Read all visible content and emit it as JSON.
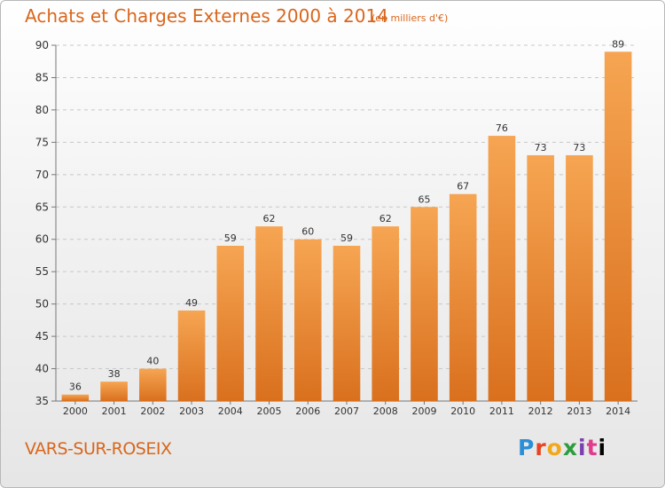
{
  "header": {
    "title": "Achats et Charges Externes 2000 à 2014",
    "subtitle": "(en milliers d'€)"
  },
  "footer": {
    "commune": "VARS-SUR-ROSEIX",
    "logo_text": "Proxiti"
  },
  "colors": {
    "accent": "#d9661c",
    "bar_top": "#f6a552",
    "bar_bottom": "#d9701e"
  },
  "chart_data": {
    "type": "bar",
    "title": "Achats et Charges Externes 2000 à 2014",
    "subtitle": "(en milliers d'€)",
    "categories": [
      "2000",
      "2001",
      "2002",
      "2003",
      "2004",
      "2005",
      "2006",
      "2007",
      "2008",
      "2009",
      "2010",
      "2011",
      "2012",
      "2013",
      "2014"
    ],
    "values": [
      36,
      38,
      40,
      49,
      59,
      62,
      60,
      59,
      62,
      65,
      67,
      76,
      73,
      73,
      89
    ],
    "ylim": [
      35,
      90
    ],
    "yticks": [
      35,
      40,
      45,
      50,
      55,
      60,
      65,
      70,
      75,
      80,
      85,
      90
    ],
    "grid": "horizontal dashed",
    "data_labels": true
  }
}
